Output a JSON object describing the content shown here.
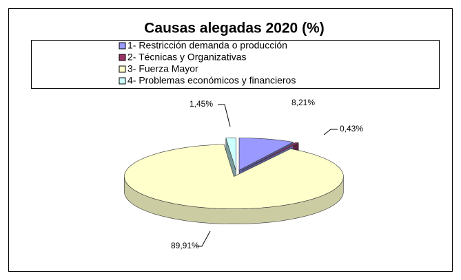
{
  "chart_data": {
    "type": "pie3d",
    "title": "Causas alegadas 2020 (%)",
    "categories": [
      "1- Restricción demanda o producción",
      "2- Técnicas y Organizativas",
      "3- Fuerza Mayor",
      "4- Problemas económicos y financieros"
    ],
    "values": [
      8.21,
      0.43,
      89.91,
      1.45
    ],
    "value_labels": [
      "8,21%",
      "0,43%",
      "89,91%",
      "1,45%"
    ],
    "colors": [
      "#9999ff",
      "#993366",
      "#ffffcc",
      "#ccffff"
    ],
    "legend": "top"
  }
}
